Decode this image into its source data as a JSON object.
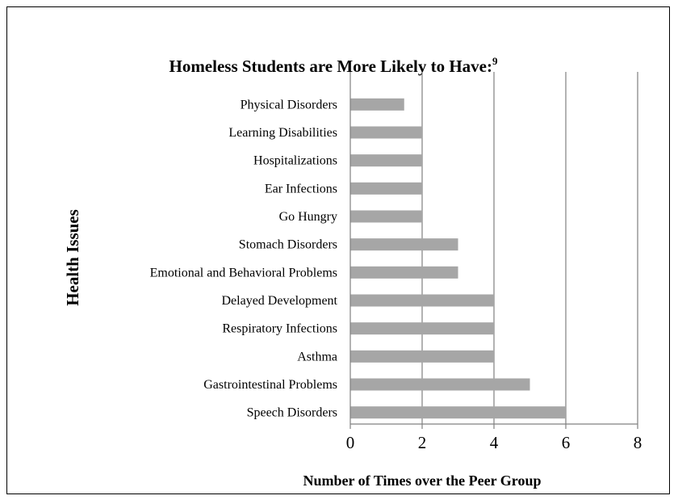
{
  "chart_data": {
    "type": "bar",
    "orientation": "horizontal",
    "title": "Homeless Students are More Likely to Have:",
    "title_superscript": "9",
    "xlabel": "Number of Times over the Peer Group",
    "ylabel": "Health Issues",
    "xlim": [
      0,
      8
    ],
    "xticks": [
      "0",
      "2",
      "4",
      "6",
      "8"
    ],
    "grid": true,
    "legend": "none",
    "bar_color": "#a6a6a6",
    "categories": [
      "Physical Disorders",
      "Learning Disabilities",
      "Hospitalizations",
      "Ear Infections",
      "Go Hungry",
      "Stomach Disorders",
      "Emotional and Behavioral Problems",
      "Delayed Development",
      "Respiratory Infections",
      "Asthma",
      "Gastrointestinal Problems",
      "Speech Disorders"
    ],
    "values": [
      1.5,
      2,
      2,
      2,
      2,
      3,
      3,
      4,
      4,
      4,
      5,
      6
    ]
  }
}
